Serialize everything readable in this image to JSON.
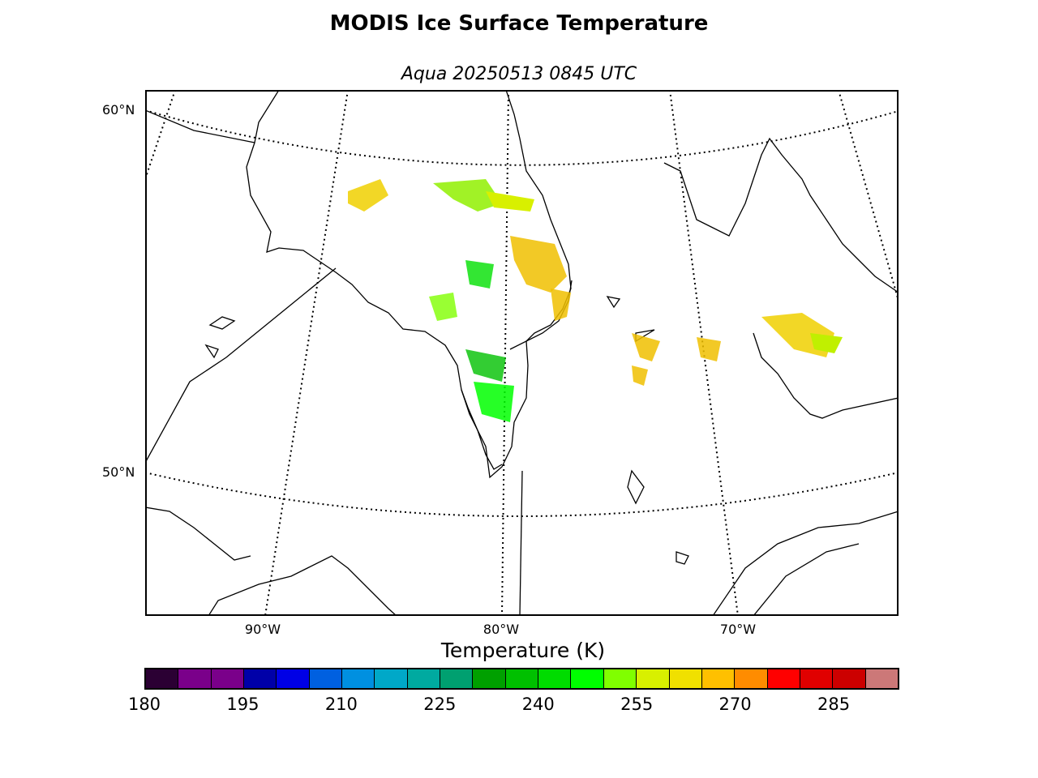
{
  "title": "MODIS Ice Surface Temperature",
  "subtitle": "Aqua 20250513 0845 UTC",
  "map": {
    "lat_labels": [
      {
        "text": "60°N",
        "value": 60
      },
      {
        "text": "50°N",
        "value": 50
      }
    ],
    "lon_labels": [
      {
        "text": "90°W",
        "value": -90
      },
      {
        "text": "80°W",
        "value": -80
      },
      {
        "text": "70°W",
        "value": -70
      }
    ],
    "graticule": "dotted",
    "data_color_range": "240–270 K (green to orange)"
  },
  "colorbar": {
    "title": "Temperature (K)",
    "min": 180,
    "max": 295,
    "step": 5,
    "tick_labels": [
      "180",
      "195",
      "210",
      "225",
      "240",
      "255",
      "270",
      "285"
    ],
    "tick_values": [
      180,
      195,
      210,
      225,
      240,
      255,
      270,
      285
    ],
    "colors": [
      "#2b0033",
      "#7a008a",
      "#7a008a",
      "#0000a8",
      "#0000e6",
      "#0060e0",
      "#0090e0",
      "#00a8c8",
      "#00aaa0",
      "#00a070",
      "#00a000",
      "#00c000",
      "#00dc00",
      "#00ff00",
      "#80ff00",
      "#d8f000",
      "#f0e000",
      "#ffc000",
      "#ff8c00",
      "#ff0000",
      "#e00000",
      "#cc0000",
      "#cc7878"
    ]
  }
}
